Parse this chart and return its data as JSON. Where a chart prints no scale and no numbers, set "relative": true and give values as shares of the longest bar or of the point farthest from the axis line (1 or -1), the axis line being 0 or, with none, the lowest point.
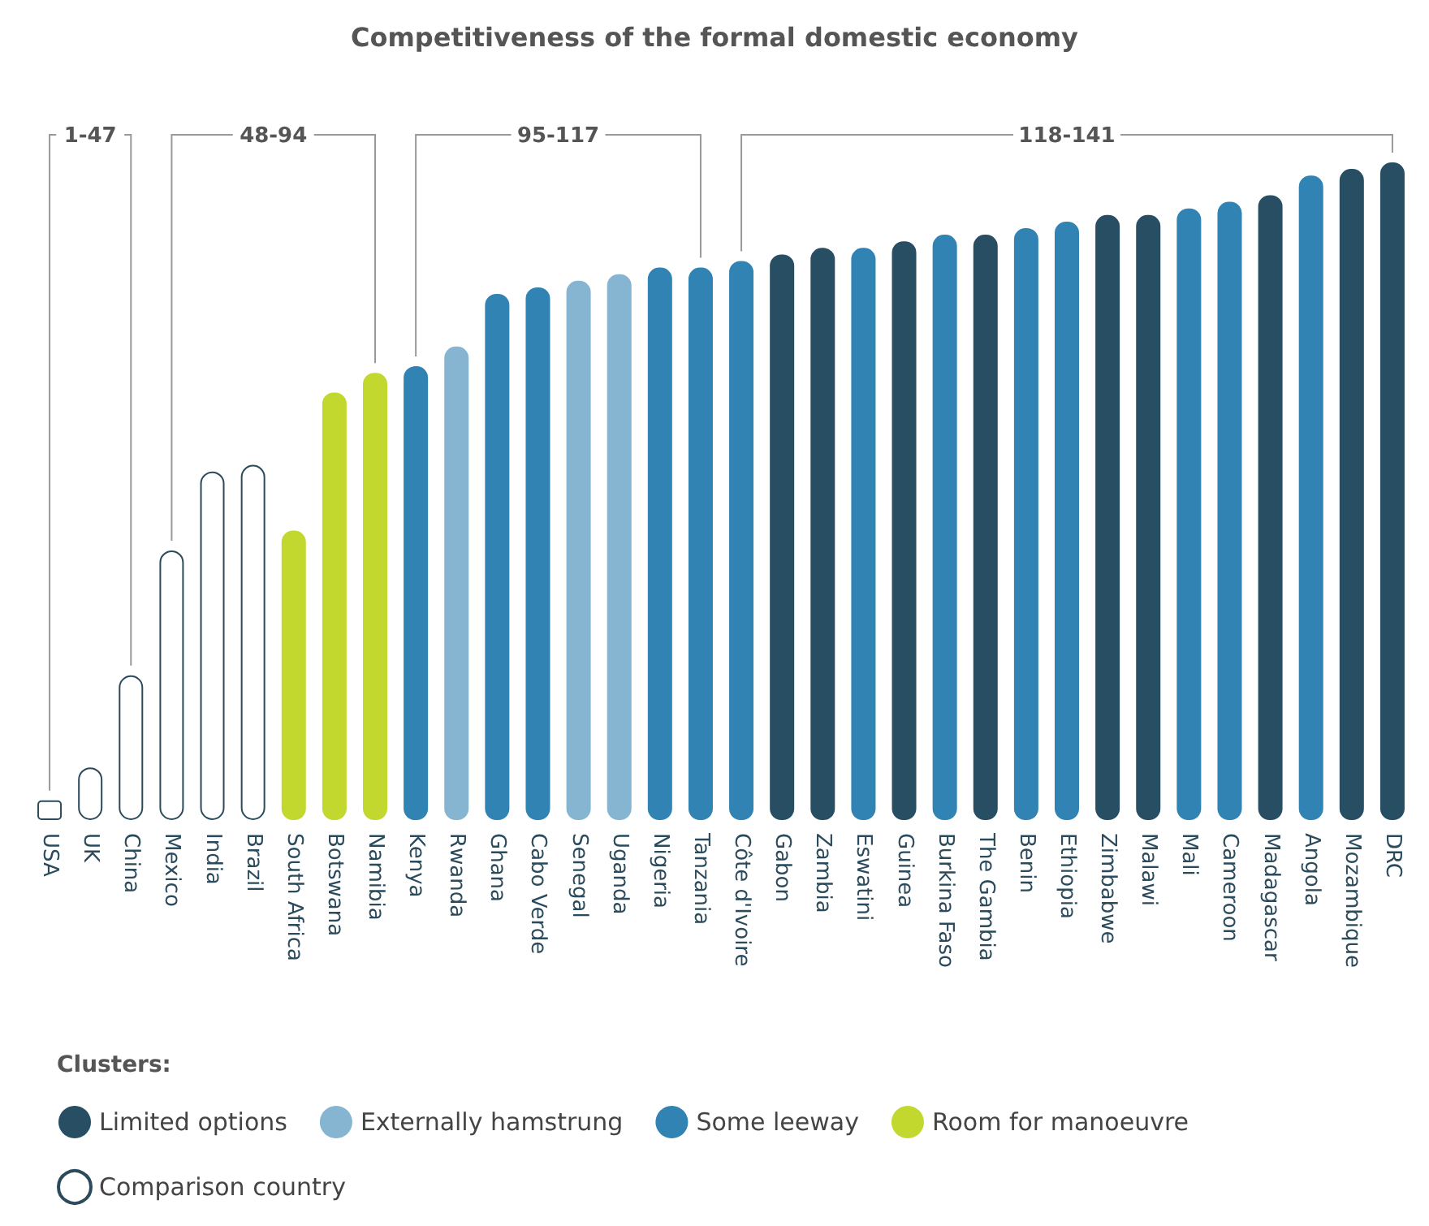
{
  "chart_data": {
    "type": "bar",
    "title": "Competitiveness of the formal domestic economy",
    "relative": true,
    "categories": [
      "USA",
      "UK",
      "China",
      "Mexico",
      "India",
      "Brazil",
      "South Africa",
      "Botswana",
      "Namibia",
      "Kenya",
      "Rwanda",
      "Ghana",
      "Cabo Verde",
      "Senegal",
      "Uganda",
      "Nigeria",
      "Tanzania",
      "Côte d'Ivoire",
      "Gabon",
      "Zambia",
      "Eswatini",
      "Guinea",
      "Burkina Faso",
      "The Gambia",
      "Benin",
      "Ethiopia",
      "Zimbabwe",
      "Malawi",
      "Mali",
      "Cameroon",
      "Madagascar",
      "Angola",
      "Mozambique",
      "DRC"
    ],
    "series": [
      {
        "name": "Limited options",
        "color": "#274e63",
        "values": [
          null,
          null,
          null,
          null,
          null,
          null,
          null,
          null,
          null,
          null,
          null,
          null,
          null,
          null,
          null,
          null,
          null,
          null,
          0.86,
          0.87,
          null,
          0.88,
          null,
          0.89,
          null,
          null,
          0.92,
          0.92,
          null,
          null,
          0.95,
          null,
          0.99,
          1
        ]
      },
      {
        "name": "Externally hamstrung",
        "color": "#85b5d1",
        "values": [
          null,
          null,
          null,
          null,
          null,
          null,
          null,
          null,
          null,
          null,
          0.72,
          null,
          null,
          0.82,
          0.83,
          null,
          null,
          null,
          null,
          null,
          null,
          null,
          null,
          null,
          null,
          null,
          null,
          null,
          null,
          null,
          null,
          null,
          null,
          null
        ]
      },
      {
        "name": "Some leeway",
        "color": "#3083b2",
        "values": [
          null,
          null,
          null,
          null,
          null,
          null,
          null,
          null,
          null,
          0.69,
          null,
          0.8,
          0.81,
          null,
          null,
          0.84,
          0.84,
          0.85,
          null,
          null,
          0.87,
          null,
          0.89,
          null,
          0.9,
          0.91,
          null,
          null,
          0.93,
          0.94,
          null,
          0.98,
          null,
          null
        ]
      },
      {
        "name": "Room for manoeuvre",
        "color": "#c2d82e",
        "values": [
          null,
          null,
          null,
          null,
          null,
          null,
          0.44,
          0.65,
          0.68,
          null,
          null,
          null,
          null,
          null,
          null,
          null,
          null,
          null,
          null,
          null,
          null,
          null,
          null,
          null,
          null,
          null,
          null,
          null,
          null,
          null,
          null,
          null,
          null,
          null
        ]
      },
      {
        "name": "Comparison country",
        "color": "#ffffff",
        "values": [
          0.03,
          0.08,
          0.22,
          0.41,
          0.53,
          0.54,
          null,
          null,
          null,
          null,
          null,
          null,
          null,
          null,
          null,
          null,
          null,
          null,
          null,
          null,
          null,
          null,
          null,
          null,
          null,
          null,
          null,
          null,
          null,
          null,
          null,
          null,
          null,
          null
        ]
      }
    ],
    "annotations": [
      "1-47",
      "48-94",
      "95-117",
      "118-141"
    ],
    "legend": "bottom",
    "legend_title": "Clusters:"
  }
}
